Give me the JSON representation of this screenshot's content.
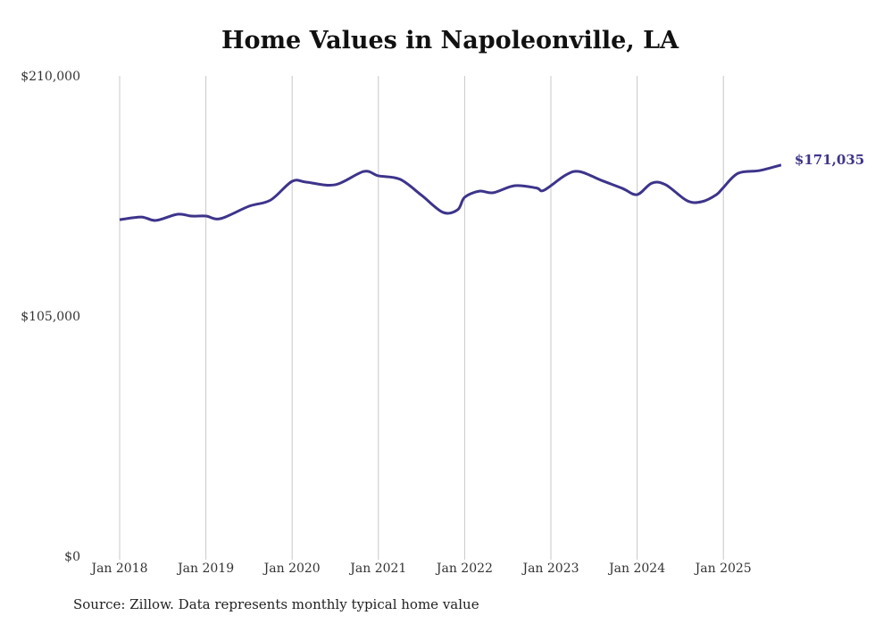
{
  "chart_data": {
    "type": "line",
    "title": "Home Values in Napoleonville, LA",
    "source": "Source: Zillow. Data represents monthly typical home value",
    "xlabel": "",
    "ylabel": "",
    "ylim": [
      0,
      210000
    ],
    "y_ticks": [
      0,
      105000,
      210000
    ],
    "y_tick_labels": [
      "$0",
      "$105,000",
      "$210,000"
    ],
    "x_tick_labels": [
      "Jan 2018",
      "Jan 2019",
      "Jan 2020",
      "Jan 2021",
      "Jan 2022",
      "Jan 2023",
      "Jan 2024",
      "Jan 2025"
    ],
    "grid": "vertical",
    "line_color": "#3d348b",
    "end_label": "$171,035",
    "series": [
      {
        "name": "Typical home value",
        "x": [
          2018.0,
          2018.25,
          2018.42,
          2018.67,
          2018.83,
          2019.0,
          2019.17,
          2019.5,
          2019.75,
          2020.0,
          2020.17,
          2020.5,
          2020.83,
          2021.0,
          2021.25,
          2021.5,
          2021.75,
          2021.92,
          2022.0,
          2022.17,
          2022.33,
          2022.58,
          2022.83,
          2022.92,
          2023.17,
          2023.33,
          2023.58,
          2023.83,
          2024.0,
          2024.17,
          2024.33,
          2024.58,
          2024.75,
          2024.92,
          2025.0,
          2025.17,
          2025.42,
          2025.67
        ],
        "values": [
          147100,
          148300,
          146800,
          149500,
          148700,
          148700,
          147600,
          153000,
          155700,
          163900,
          163500,
          162400,
          168200,
          166300,
          164800,
          157800,
          150300,
          151500,
          156900,
          159600,
          158900,
          162000,
          161000,
          160000,
          166600,
          168200,
          164400,
          160800,
          158100,
          163100,
          162400,
          155400,
          155000,
          158100,
          161200,
          167400,
          168600,
          171035
        ]
      }
    ]
  }
}
